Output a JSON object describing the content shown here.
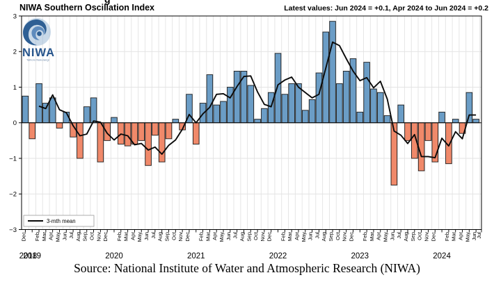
{
  "title": "NIWA Southern Oscillation Index",
  "latest_values_note": "Latest values: Jun 2024 = +0.1, Apr 2024 to Jun 2024 = +0.2",
  "source_caption": "Source: National Institute of Water and Atmospheric Research (NIWA)",
  "clipped_fragment": "g",
  "logo": {
    "name": "NIWA",
    "subtitle": "Taihoro Nukurangi"
  },
  "legend": {
    "line_label": "3-mth mean"
  },
  "colors": {
    "positive_bar": "#6b9dc6",
    "negative_bar": "#f0896a",
    "bar_edge": "#1c1c1c",
    "mean_line": "#0a0a0a",
    "grid": "#e3e3e3",
    "frame": "#000000",
    "niwa_blue": "#2e5f94",
    "niwa_light": "#7fa8cf"
  },
  "chart_data": {
    "type": "bar",
    "title": "NIWA Southern Oscillation Index",
    "ylabel": "",
    "ylim": [
      -3,
      3
    ],
    "y_ticks": [
      -3,
      -2,
      -1,
      0,
      1,
      2,
      3
    ],
    "grid": "on",
    "legend_position": "lower-left",
    "line_series_name": "3-mth mean",
    "line_series_rule": "3-month trailing mean of monthly values, drawn from Feb 2019 to Jun 2024",
    "x_start": "Dec 2018",
    "x_end": "Jun 2024",
    "axis_end_tick": "Jul",
    "year_labels": [
      "2018",
      "2019",
      "2020",
      "2021",
      "2022",
      "2023",
      "2024"
    ],
    "months": [
      {
        "month": "Dec",
        "year": 2018,
        "value": 0.75
      },
      {
        "month": "Jan",
        "year": 2019,
        "value": -0.45
      },
      {
        "month": "Feb",
        "year": 2019,
        "value": 1.1
      },
      {
        "month": "Mar",
        "year": 2019,
        "value": 0.55
      },
      {
        "month": "Apr",
        "year": 2019,
        "value": 0.7
      },
      {
        "month": "May",
        "year": 2019,
        "value": -0.15
      },
      {
        "month": "Jun",
        "year": 2019,
        "value": 0.3
      },
      {
        "month": "Jul",
        "year": 2019,
        "value": -0.4
      },
      {
        "month": "Aug",
        "year": 2019,
        "value": -1.0
      },
      {
        "month": "Sep",
        "year": 2019,
        "value": 0.45
      },
      {
        "month": "Oct",
        "year": 2019,
        "value": 0.7
      },
      {
        "month": "Nov",
        "year": 2019,
        "value": -1.1
      },
      {
        "month": "Dec",
        "year": 2019,
        "value": -0.5
      },
      {
        "month": "Jan",
        "year": 2020,
        "value": 0.15
      },
      {
        "month": "Feb",
        "year": 2020,
        "value": -0.6
      },
      {
        "month": "Mar",
        "year": 2020,
        "value": -0.65
      },
      {
        "month": "Apr",
        "year": 2020,
        "value": -0.6
      },
      {
        "month": "May",
        "year": 2020,
        "value": -0.5
      },
      {
        "month": "Jun",
        "year": 2020,
        "value": -1.2
      },
      {
        "month": "Jul",
        "year": 2020,
        "value": -0.35
      },
      {
        "month": "Aug",
        "year": 2020,
        "value": -1.1
      },
      {
        "month": "Sep",
        "year": 2020,
        "value": -0.45
      },
      {
        "month": "Oct",
        "year": 2020,
        "value": 0.1
      },
      {
        "month": "Nov",
        "year": 2020,
        "value": -0.2
      },
      {
        "month": "Dec",
        "year": 2020,
        "value": 0.8
      },
      {
        "month": "Jan",
        "year": 2021,
        "value": -0.6
      },
      {
        "month": "Feb",
        "year": 2021,
        "value": 0.55
      },
      {
        "month": "Mar",
        "year": 2021,
        "value": 1.35
      },
      {
        "month": "Apr",
        "year": 2021,
        "value": 0.5
      },
      {
        "month": "May",
        "year": 2021,
        "value": 0.6
      },
      {
        "month": "Jun",
        "year": 2021,
        "value": 1.0
      },
      {
        "month": "Jul",
        "year": 2021,
        "value": 1.45
      },
      {
        "month": "Aug",
        "year": 2021,
        "value": 1.45
      },
      {
        "month": "Sep",
        "year": 2021,
        "value": 1.05
      },
      {
        "month": "Oct",
        "year": 2021,
        "value": 0.1
      },
      {
        "month": "Nov",
        "year": 2021,
        "value": 0.4
      },
      {
        "month": "Dec",
        "year": 2021,
        "value": 0.85
      },
      {
        "month": "Jan",
        "year": 2022,
        "value": 1.95
      },
      {
        "month": "Feb",
        "year": 2022,
        "value": 0.8
      },
      {
        "month": "Mar",
        "year": 2022,
        "value": 1.1
      },
      {
        "month": "Apr",
        "year": 2022,
        "value": 1.1
      },
      {
        "month": "May",
        "year": 2022,
        "value": 0.35
      },
      {
        "month": "Jun",
        "year": 2022,
        "value": 0.65
      },
      {
        "month": "Jul",
        "year": 2022,
        "value": 1.4
      },
      {
        "month": "Aug",
        "year": 2022,
        "value": 2.55
      },
      {
        "month": "Sep",
        "year": 2022,
        "value": 2.85
      },
      {
        "month": "Oct",
        "year": 2022,
        "value": 1.1
      },
      {
        "month": "Nov",
        "year": 2022,
        "value": 1.45
      },
      {
        "month": "Dec",
        "year": 2022,
        "value": 1.8
      },
      {
        "month": "Jan",
        "year": 2023,
        "value": 0.3
      },
      {
        "month": "Feb",
        "year": 2023,
        "value": 1.7
      },
      {
        "month": "Mar",
        "year": 2023,
        "value": 0.95
      },
      {
        "month": "Apr",
        "year": 2023,
        "value": 0.85
      },
      {
        "month": "May",
        "year": 2023,
        "value": 0.2
      },
      {
        "month": "Jun",
        "year": 2023,
        "value": -1.75
      },
      {
        "month": "Jul",
        "year": 2023,
        "value": 0.5
      },
      {
        "month": "Aug",
        "year": 2023,
        "value": -0.5
      },
      {
        "month": "Sep",
        "year": 2023,
        "value": -1.0
      },
      {
        "month": "Oct",
        "year": 2023,
        "value": -1.35
      },
      {
        "month": "Nov",
        "year": 2023,
        "value": -0.5
      },
      {
        "month": "Dec",
        "year": 2023,
        "value": -1.1
      },
      {
        "month": "Jan",
        "year": 2024,
        "value": 0.3
      },
      {
        "month": "Feb",
        "year": 2024,
        "value": -1.15
      },
      {
        "month": "Mar",
        "year": 2024,
        "value": 0.1
      },
      {
        "month": "Apr",
        "year": 2024,
        "value": -0.3
      },
      {
        "month": "May",
        "year": 2024,
        "value": 0.85
      },
      {
        "month": "Jun",
        "year": 2024,
        "value": 0.1
      }
    ]
  }
}
